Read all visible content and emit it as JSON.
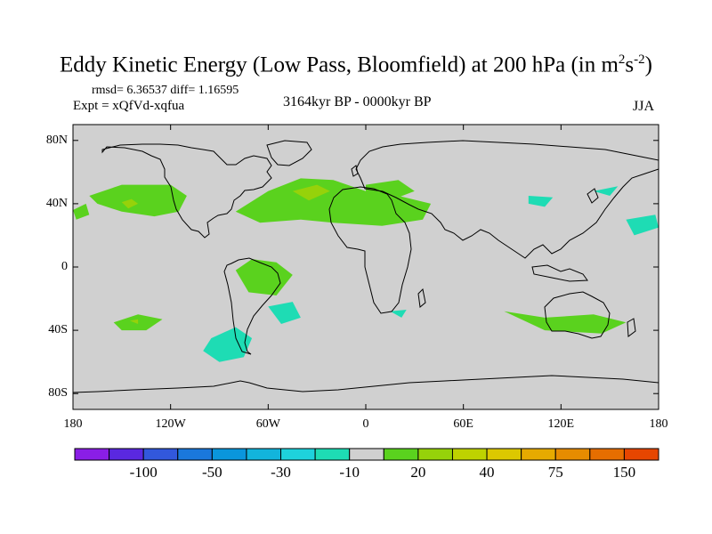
{
  "title": {
    "main": "Eddy Kinetic Energy (Low Pass, Bloomfield) at 200 hPa (in m",
    "sup1": "2",
    "mid": "s",
    "sup2": "-2",
    "end": ")"
  },
  "stats": {
    "rmsd": "rmsd= 6.36537 diff= 1.16595",
    "expt": "Expt = xQfVd-xqfua",
    "period": "3164kyr BP - 0000kyr BP",
    "season": "JJA"
  },
  "axes": {
    "lat_labels": [
      "80N",
      "40N",
      "0",
      "40S",
      "80S"
    ],
    "lat_values": [
      80,
      40,
      0,
      -40,
      -80
    ],
    "lon_labels": [
      "180",
      "120W",
      "60W",
      "0",
      "60E",
      "120E",
      "180"
    ],
    "lon_values": [
      -180,
      -120,
      -60,
      0,
      60,
      120,
      180
    ]
  },
  "colorbar": {
    "colors": [
      "#8a1ee6",
      "#5a28e0",
      "#3258dc",
      "#1a78dc",
      "#0a96dc",
      "#12b4dc",
      "#1ed2dc",
      "#1edcb4",
      "#d0d0d0",
      "#5ad21e",
      "#96d20a",
      "#bed200",
      "#dcc800",
      "#e6aa00",
      "#e68c00",
      "#e66e00",
      "#e64600"
    ],
    "labels": [
      "-100",
      "-50",
      "-30",
      "-10",
      "20",
      "40",
      "75",
      "150"
    ],
    "label_boundary_index": [
      2,
      4,
      6,
      8,
      10,
      12,
      14,
      16
    ]
  },
  "map_data": {
    "background_color": "#d0d0d0",
    "anomaly_regions": [
      {
        "name": "pacific-north-green",
        "color": "#5ad21e",
        "points": [
          [
            -170,
            45
          ],
          [
            -150,
            52
          ],
          [
            -120,
            52
          ],
          [
            -110,
            45
          ],
          [
            -115,
            35
          ],
          [
            -130,
            32
          ],
          [
            -150,
            35
          ],
          [
            -165,
            40
          ]
        ]
      },
      {
        "name": "pacific-north-core",
        "color": "#96d20a",
        "points": [
          [
            -150,
            41
          ],
          [
            -144,
            43
          ],
          [
            -140,
            40
          ],
          [
            -146,
            37
          ]
        ]
      },
      {
        "name": "pacific-west-green",
        "color": "#5ad21e",
        "points": [
          [
            -180,
            36
          ],
          [
            -172,
            40
          ],
          [
            -170,
            33
          ],
          [
            -178,
            30
          ]
        ]
      },
      {
        "name": "atlantic-north-green",
        "color": "#5ad21e",
        "points": [
          [
            -80,
            35
          ],
          [
            -60,
            48
          ],
          [
            -40,
            56
          ],
          [
            -20,
            55
          ],
          [
            0,
            48
          ],
          [
            20,
            45
          ],
          [
            40,
            40
          ],
          [
            35,
            30
          ],
          [
            10,
            26
          ],
          [
            -20,
            28
          ],
          [
            -40,
            30
          ],
          [
            -65,
            28
          ]
        ]
      },
      {
        "name": "atlantic-north-core",
        "color": "#96d20a",
        "points": [
          [
            -45,
            48
          ],
          [
            -30,
            52
          ],
          [
            -22,
            48
          ],
          [
            -35,
            42
          ]
        ]
      },
      {
        "name": "europe-green",
        "color": "#5ad21e",
        "points": [
          [
            0,
            52
          ],
          [
            20,
            55
          ],
          [
            30,
            48
          ],
          [
            15,
            42
          ],
          [
            0,
            44
          ]
        ]
      },
      {
        "name": "south-america-green",
        "color": "#5ad21e",
        "points": [
          [
            -80,
            -2
          ],
          [
            -70,
            5
          ],
          [
            -55,
            3
          ],
          [
            -45,
            -5
          ],
          [
            -55,
            -18
          ],
          [
            -72,
            -16
          ]
        ]
      },
      {
        "name": "pacific-south-green",
        "color": "#5ad21e",
        "points": [
          [
            -155,
            -35
          ],
          [
            -140,
            -30
          ],
          [
            -125,
            -33
          ],
          [
            -135,
            -40
          ],
          [
            -150,
            -40
          ]
        ]
      },
      {
        "name": "pacific-south-core",
        "color": "#96d20a",
        "points": [
          [
            -145,
            -34
          ],
          [
            -140,
            -33
          ],
          [
            -140,
            -36
          ]
        ]
      },
      {
        "name": "south-pacific-cyan",
        "color": "#1edcb4",
        "points": [
          [
            -95,
            -45
          ],
          [
            -80,
            -38
          ],
          [
            -70,
            -45
          ],
          [
            -75,
            -57
          ],
          [
            -90,
            -60
          ],
          [
            -100,
            -53
          ]
        ]
      },
      {
        "name": "south-atlantic-cyan",
        "color": "#1edcb4",
        "points": [
          [
            -60,
            -25
          ],
          [
            -45,
            -22
          ],
          [
            -40,
            -32
          ],
          [
            -52,
            -36
          ]
        ]
      },
      {
        "name": "australia-green",
        "color": "#5ad21e",
        "points": [
          [
            85,
            -28
          ],
          [
            110,
            -32
          ],
          [
            140,
            -30
          ],
          [
            160,
            -35
          ],
          [
            145,
            -42
          ],
          [
            110,
            -40
          ]
        ]
      },
      {
        "name": "asia-cyan",
        "color": "#1edcb4",
        "points": [
          [
            100,
            45
          ],
          [
            115,
            44
          ],
          [
            110,
            38
          ],
          [
            100,
            40
          ]
        ]
      },
      {
        "name": "pacific-west-cyan",
        "color": "#1edcb4",
        "points": [
          [
            160,
            30
          ],
          [
            178,
            33
          ],
          [
            180,
            25
          ],
          [
            165,
            20
          ]
        ]
      },
      {
        "name": "africa-south-cyan",
        "color": "#1edcb4",
        "points": [
          [
            15,
            -28
          ],
          [
            25,
            -27
          ],
          [
            22,
            -32
          ]
        ]
      },
      {
        "name": "north-pacific-cyan",
        "color": "#1edcb4",
        "points": [
          [
            140,
            48
          ],
          [
            155,
            51
          ],
          [
            150,
            45
          ]
        ]
      }
    ]
  }
}
